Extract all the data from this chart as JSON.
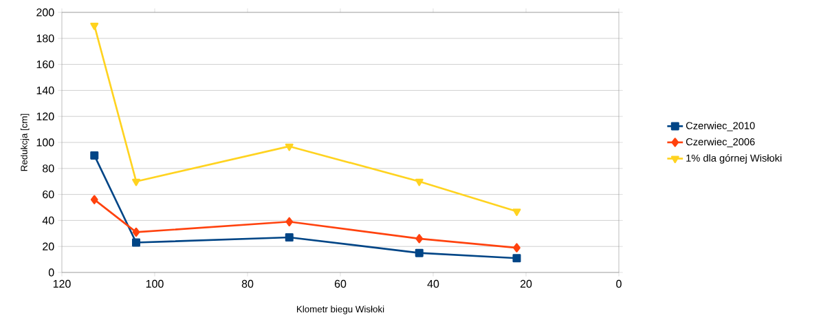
{
  "chart_data": {
    "type": "line",
    "xlabel": "Klometr biegu Wisłoki",
    "ylabel": "Redukcja [cm]",
    "x": [
      113,
      104,
      71,
      43,
      22
    ],
    "series": [
      {
        "name": "Czerwiec_2010",
        "color": "#004586",
        "marker": "square",
        "values": [
          90,
          23,
          27,
          15,
          11
        ]
      },
      {
        "name": "Czerwiec_2006",
        "color": "#ff420e",
        "marker": "diamond",
        "values": [
          56,
          31,
          39,
          26,
          19
        ]
      },
      {
        "name": "1% dla górnej Wisłoki",
        "color": "#ffd320",
        "marker": "triangle",
        "values": [
          190,
          70,
          97,
          70,
          47
        ]
      }
    ],
    "xlim": [
      120,
      0
    ],
    "xticks": [
      120,
      100,
      80,
      60,
      40,
      20,
      0
    ],
    "ylim": [
      0,
      200
    ],
    "yticks": [
      0,
      20,
      40,
      60,
      80,
      100,
      120,
      140,
      160,
      180,
      200
    ],
    "grid": "y",
    "legend": "right",
    "line_style": "solid"
  }
}
